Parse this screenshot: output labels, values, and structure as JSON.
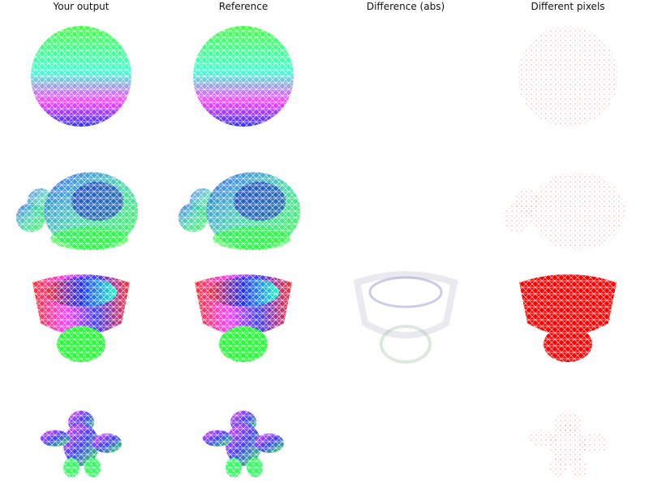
{
  "columns": [
    {
      "title": "Your output"
    },
    {
      "title": "Reference"
    },
    {
      "title": "Difference (abs)"
    },
    {
      "title": "Different pixels"
    }
  ],
  "rows": [
    {
      "model": "sphere"
    },
    {
      "model": "monkey-head"
    },
    {
      "model": "bowl-vase"
    },
    {
      "model": "armadillo"
    }
  ],
  "colors": {
    "red": "#ff0000",
    "green": "#00ff00",
    "blue": "#0000ff",
    "magenta": "#ff00ff",
    "cyan": "#00ffff",
    "yellow": "#ffff00"
  }
}
